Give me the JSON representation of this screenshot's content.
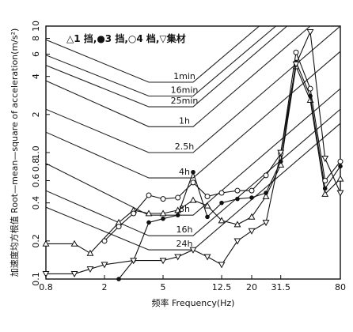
{
  "chart_data": {
    "type": "line",
    "xscale": "log",
    "yscale": "log",
    "xlim": [
      0.8,
      80
    ],
    "ylim": [
      0.1,
      10
    ],
    "xticks": [
      "0.8",
      "2",
      "5",
      "12.5",
      "20",
      "31.5",
      "80"
    ],
    "xtick_values": [
      0.8,
      2,
      5,
      12.5,
      20,
      31.5,
      80
    ],
    "yticks": [
      "0.1",
      "0.2",
      "0.4",
      "0.6",
      "0.8",
      "1.0",
      "2",
      "4",
      "6",
      "8",
      "10"
    ],
    "ytick_values": [
      0.1,
      0.2,
      0.4,
      0.6,
      0.8,
      1.0,
      2,
      4,
      6,
      8,
      10
    ],
    "xlabel": "频率 Frequency(Hz)",
    "ylabel": "加速度均方根值 Root—mean—square of acceleration(m/s²)",
    "legend_text": "△1 挡,●3 挡,○4 档,▽集材",
    "limit_curves": [
      {
        "label": "1min",
        "points": [
          [
            0.8,
            7.8
          ],
          [
            4,
            3.6
          ],
          [
            8,
            3.6
          ],
          [
            80,
            35
          ]
        ]
      },
      {
        "label": "16min",
        "points": [
          [
            0.8,
            5.9
          ],
          [
            4,
            2.8
          ],
          [
            8,
            2.8
          ],
          [
            80,
            27
          ]
        ]
      },
      {
        "label": "25min",
        "points": [
          [
            0.8,
            4.9
          ],
          [
            4,
            2.3
          ],
          [
            8,
            2.3
          ],
          [
            80,
            23
          ]
        ]
      },
      {
        "label": "1h",
        "points": [
          [
            0.8,
            3.7
          ],
          [
            4,
            1.6
          ],
          [
            8,
            1.6
          ],
          [
            80,
            16
          ]
        ]
      },
      {
        "label": "2.5h",
        "points": [
          [
            0.8,
            2.2
          ],
          [
            4,
            1.0
          ],
          [
            8,
            1.0
          ],
          [
            80,
            10
          ]
        ]
      },
      {
        "label": "4h",
        "points": [
          [
            0.8,
            1.45
          ],
          [
            4,
            0.63
          ],
          [
            8,
            0.63
          ],
          [
            80,
            6.3
          ]
        ]
      },
      {
        "label": "8h",
        "points": [
          [
            0.8,
            0.82
          ],
          [
            4,
            0.32
          ],
          [
            8,
            0.32
          ],
          [
            80,
            3.2
          ]
        ]
      },
      {
        "label": "16h",
        "points": [
          [
            0.8,
            0.5
          ],
          [
            4,
            0.22
          ],
          [
            8,
            0.22
          ],
          [
            80,
            2.2
          ]
        ]
      },
      {
        "label": "24h",
        "points": [
          [
            0.8,
            0.37
          ],
          [
            4,
            0.17
          ],
          [
            8,
            0.17
          ],
          [
            80,
            1.7
          ]
        ]
      }
    ],
    "series": [
      {
        "name": "1 挡",
        "marker": "triangle",
        "x": [
          0.8,
          1.25,
          1.6,
          2.5,
          3.15,
          4,
          5,
          6.3,
          8,
          10,
          12.5,
          16,
          20,
          25,
          31.5,
          40,
          50,
          63,
          80
        ],
        "y": [
          0.19,
          0.19,
          0.16,
          0.28,
          0.35,
          0.33,
          0.33,
          0.35,
          0.42,
          0.38,
          0.29,
          0.27,
          0.31,
          0.45,
          0.8,
          4.8,
          2.6,
          0.47,
          0.62
        ]
      },
      {
        "name": "3 挡",
        "marker": "filled-circle",
        "x": [
          2.5,
          3.15,
          4,
          5,
          6.3,
          8,
          10,
          12.5,
          16,
          20,
          25,
          31.5,
          40,
          50,
          63,
          80
        ],
        "y": [
          0.1,
          0.14,
          0.28,
          0.3,
          0.32,
          0.7,
          0.31,
          0.4,
          0.43,
          0.44,
          0.48,
          0.85,
          5.2,
          2.8,
          0.52,
          0.78
        ]
      },
      {
        "name": "4 档",
        "marker": "open-circle",
        "x": [
          2,
          2.5,
          3.15,
          4,
          5,
          6.3,
          8,
          10,
          12.5,
          16,
          20,
          25,
          31.5,
          40,
          50,
          63,
          80
        ],
        "y": [
          0.2,
          0.26,
          0.33,
          0.46,
          0.43,
          0.44,
          0.58,
          0.45,
          0.48,
          0.5,
          0.5,
          0.66,
          0.98,
          6.2,
          3.2,
          0.6,
          0.85
        ]
      },
      {
        "name": "集材",
        "marker": "inverted-triangle",
        "x": [
          0.8,
          1.25,
          1.6,
          2,
          3.15,
          5,
          6.3,
          8,
          10,
          12.5,
          16,
          20,
          25,
          31.5,
          40,
          50,
          63,
          80
        ],
        "y": [
          0.11,
          0.11,
          0.12,
          0.13,
          0.14,
          0.14,
          0.15,
          0.17,
          0.15,
          0.13,
          0.2,
          0.24,
          0.28,
          1.0,
          5.0,
          9.0,
          0.9,
          0.48
        ]
      }
    ]
  }
}
